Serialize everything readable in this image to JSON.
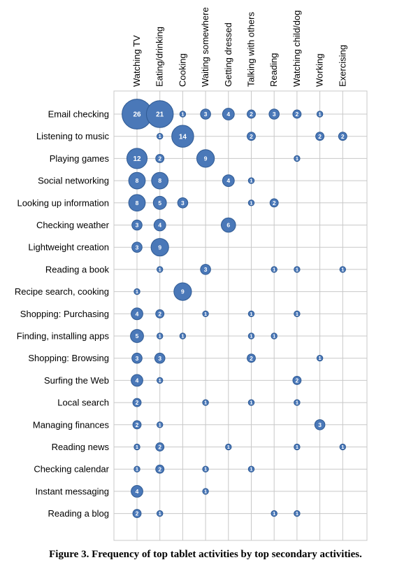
{
  "caption": "Figure 3. Frequency of top tablet activities by top secondary activities.",
  "chart_data": {
    "type": "scatter",
    "encoding": "bubble",
    "title": "",
    "x_categories": [
      "Watching TV",
      "Eating/drinking",
      "Cooking",
      "Waiting somewhere",
      "Getting dressed",
      "Talking with others",
      "Reading",
      "Watching child/dog",
      "Working",
      "Exercising"
    ],
    "y_categories": [
      "Email checking",
      "Listening to music",
      "Playing games",
      "Social networking",
      "Looking up information",
      "Checking weather",
      "Lightweight creation",
      "Reading a book",
      "Recipe search, cooking",
      "Shopping: Purchasing",
      "Finding, installing apps",
      "Shopping: Browsing",
      "Surfing the Web",
      "Local search",
      "Managing finances",
      "Reading news",
      "Checking calendar",
      "Instant messaging",
      "Reading a blog"
    ],
    "points": [
      {
        "row": 0,
        "col": 0,
        "value": 26
      },
      {
        "row": 0,
        "col": 1,
        "value": 21
      },
      {
        "row": 0,
        "col": 2,
        "value": 1
      },
      {
        "row": 0,
        "col": 3,
        "value": 3
      },
      {
        "row": 0,
        "col": 4,
        "value": 4
      },
      {
        "row": 0,
        "col": 5,
        "value": 2
      },
      {
        "row": 0,
        "col": 6,
        "value": 3
      },
      {
        "row": 0,
        "col": 7,
        "value": 2
      },
      {
        "row": 0,
        "col": 8,
        "value": 1
      },
      {
        "row": 1,
        "col": 1,
        "value": 1
      },
      {
        "row": 1,
        "col": 2,
        "value": 14
      },
      {
        "row": 1,
        "col": 5,
        "value": 2
      },
      {
        "row": 1,
        "col": 8,
        "value": 2
      },
      {
        "row": 1,
        "col": 9,
        "value": 2
      },
      {
        "row": 2,
        "col": 0,
        "value": 12
      },
      {
        "row": 2,
        "col": 1,
        "value": 2
      },
      {
        "row": 2,
        "col": 3,
        "value": 9
      },
      {
        "row": 2,
        "col": 7,
        "value": 1
      },
      {
        "row": 3,
        "col": 0,
        "value": 8
      },
      {
        "row": 3,
        "col": 1,
        "value": 8
      },
      {
        "row": 3,
        "col": 4,
        "value": 4
      },
      {
        "row": 3,
        "col": 5,
        "value": 1
      },
      {
        "row": 4,
        "col": 0,
        "value": 8
      },
      {
        "row": 4,
        "col": 1,
        "value": 5
      },
      {
        "row": 4,
        "col": 2,
        "value": 3
      },
      {
        "row": 4,
        "col": 5,
        "value": 1
      },
      {
        "row": 4,
        "col": 6,
        "value": 2
      },
      {
        "row": 5,
        "col": 0,
        "value": 3
      },
      {
        "row": 5,
        "col": 1,
        "value": 4
      },
      {
        "row": 5,
        "col": 4,
        "value": 6
      },
      {
        "row": 6,
        "col": 0,
        "value": 3
      },
      {
        "row": 6,
        "col": 1,
        "value": 9
      },
      {
        "row": 7,
        "col": 1,
        "value": 1
      },
      {
        "row": 7,
        "col": 3,
        "value": 3
      },
      {
        "row": 7,
        "col": 6,
        "value": 1
      },
      {
        "row": 7,
        "col": 7,
        "value": 1
      },
      {
        "row": 7,
        "col": 9,
        "value": 1
      },
      {
        "row": 8,
        "col": 0,
        "value": 1
      },
      {
        "row": 8,
        "col": 2,
        "value": 9
      },
      {
        "row": 9,
        "col": 0,
        "value": 4
      },
      {
        "row": 9,
        "col": 1,
        "value": 2
      },
      {
        "row": 9,
        "col": 3,
        "value": 1
      },
      {
        "row": 9,
        "col": 5,
        "value": 1
      },
      {
        "row": 9,
        "col": 7,
        "value": 1
      },
      {
        "row": 10,
        "col": 0,
        "value": 5
      },
      {
        "row": 10,
        "col": 1,
        "value": 1
      },
      {
        "row": 10,
        "col": 2,
        "value": 1
      },
      {
        "row": 10,
        "col": 5,
        "value": 1
      },
      {
        "row": 10,
        "col": 6,
        "value": 1
      },
      {
        "row": 11,
        "col": 0,
        "value": 3
      },
      {
        "row": 11,
        "col": 1,
        "value": 3
      },
      {
        "row": 11,
        "col": 5,
        "value": 2
      },
      {
        "row": 11,
        "col": 8,
        "value": 1
      },
      {
        "row": 12,
        "col": 0,
        "value": 4
      },
      {
        "row": 12,
        "col": 1,
        "value": 1
      },
      {
        "row": 12,
        "col": 7,
        "value": 2
      },
      {
        "row": 13,
        "col": 0,
        "value": 2
      },
      {
        "row": 13,
        "col": 3,
        "value": 1
      },
      {
        "row": 13,
        "col": 5,
        "value": 1
      },
      {
        "row": 13,
        "col": 7,
        "value": 1
      },
      {
        "row": 14,
        "col": 0,
        "value": 2
      },
      {
        "row": 14,
        "col": 1,
        "value": 1
      },
      {
        "row": 14,
        "col": 8,
        "value": 3
      },
      {
        "row": 15,
        "col": 0,
        "value": 1
      },
      {
        "row": 15,
        "col": 1,
        "value": 2
      },
      {
        "row": 15,
        "col": 4,
        "value": 1
      },
      {
        "row": 15,
        "col": 7,
        "value": 1
      },
      {
        "row": 15,
        "col": 9,
        "value": 1
      },
      {
        "row": 16,
        "col": 0,
        "value": 1
      },
      {
        "row": 16,
        "col": 1,
        "value": 2
      },
      {
        "row": 16,
        "col": 3,
        "value": 1
      },
      {
        "row": 16,
        "col": 5,
        "value": 1
      },
      {
        "row": 17,
        "col": 0,
        "value": 4
      },
      {
        "row": 17,
        "col": 3,
        "value": 1
      },
      {
        "row": 18,
        "col": 0,
        "value": 2
      },
      {
        "row": 18,
        "col": 1,
        "value": 1
      },
      {
        "row": 18,
        "col": 6,
        "value": 1
      },
      {
        "row": 18,
        "col": 7,
        "value": 1
      }
    ],
    "grid": true,
    "bubble_color": "#4a78b8",
    "bubble_stroke": "#2f5a93",
    "grid_color": "#c8c8c8"
  }
}
